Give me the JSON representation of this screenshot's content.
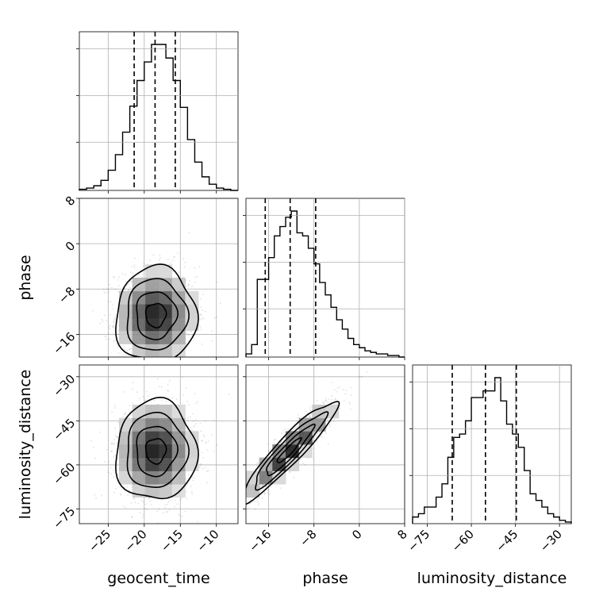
{
  "chart_data": {
    "type": "corner",
    "parameters": [
      "geocent_time",
      "phase",
      "luminosity_distance"
    ],
    "axis_labels": {
      "x": [
        "geocent_time",
        "phase",
        "luminosity_distance"
      ],
      "y": [
        "phase",
        "luminosity_distance"
      ]
    },
    "ranges": {
      "geocent_time": [
        -29,
        -7
      ],
      "phase": [
        -20,
        8
      ],
      "luminosity_distance": [
        -80,
        -26
      ]
    },
    "ticks": {
      "geocent_time": [
        -25,
        -20,
        -15,
        -10
      ],
      "phase": [
        -16,
        -8,
        0,
        8
      ],
      "luminosity_distance": [
        -75,
        -60,
        -45,
        -30
      ]
    },
    "tick_labels": {
      "geocent_time": [
        "−25",
        "−20",
        "−15",
        "−10"
      ],
      "phase_x": [
        "−16",
        "−8",
        "0",
        "8"
      ],
      "phase_y": [
        "8",
        "0",
        "−8",
        "−16"
      ],
      "luminosity_distance_x": [
        "−75",
        "−60",
        "−45",
        "−30"
      ],
      "luminosity_distance_y": [
        "−30",
        "−45",
        "−60",
        "−75"
      ]
    },
    "quantile_lines": {
      "geocent_time": [
        -21.4,
        -18.5,
        -15.7
      ],
      "phase": [
        -16.6,
        -12.2,
        -7.7
      ],
      "luminosity_distance": [
        -66.5,
        -55.2,
        -44.7
      ]
    },
    "histograms": {
      "geocent_time": {
        "edges": [
          -29,
          -28,
          -27,
          -26,
          -25,
          -24,
          -23,
          -22,
          -21,
          -20,
          -19,
          -18,
          -17,
          -16,
          -15,
          -14,
          -13,
          -12,
          -11,
          -10,
          -9,
          -8,
          -7
        ],
        "counts": [
          0.3,
          0.6,
          1.2,
          2.6,
          5.2,
          9.2,
          15,
          21.7,
          28.3,
          33.1,
          37.6,
          37.6,
          34.1,
          28.3,
          21.4,
          13.1,
          7.3,
          3.5,
          1.6,
          0.6,
          0.3,
          0
        ]
      },
      "phase": {
        "edges": [
          -20,
          -19,
          -18,
          -17,
          -16,
          -15,
          -14,
          -13,
          -12,
          -11,
          -10,
          -9,
          -8,
          -7,
          -6,
          -5,
          -4,
          -3,
          -2,
          -1,
          0,
          1,
          2,
          3,
          4,
          5,
          6,
          7,
          8
        ],
        "counts": [
          1,
          4,
          25,
          25,
          32,
          39,
          42,
          45,
          47,
          40,
          39,
          35,
          30,
          24,
          20,
          16,
          12,
          9,
          6,
          4,
          3,
          2,
          1.5,
          1,
          1,
          0.5,
          0.5,
          0
        ]
      },
      "luminosity_distance": {
        "edges": [
          -80,
          -78,
          -76,
          -74,
          -72,
          -70,
          -68,
          -66,
          -64,
          -62,
          -60,
          -58,
          -56,
          -54,
          -52,
          -50,
          -48,
          -46,
          -44,
          -42,
          -40,
          -38,
          -36,
          -34,
          -32,
          -30,
          -28,
          -26
        ],
        "counts": [
          2,
          3,
          5,
          5,
          8,
          12,
          20,
          26,
          27,
          31,
          38,
          38,
          40,
          40,
          44,
          37,
          30,
          27,
          23,
          16,
          9,
          7,
          5,
          3,
          2,
          1,
          0.5
        ]
      }
    },
    "grid": true,
    "contour_colors": "#000000",
    "density_shading": "greyscale"
  }
}
